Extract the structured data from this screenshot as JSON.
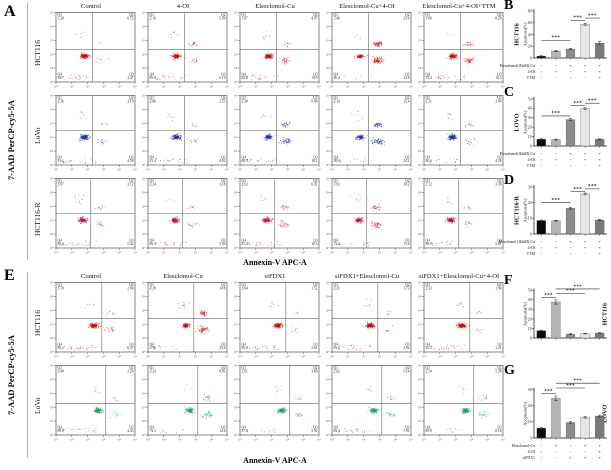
{
  "figure": {
    "panel_a": {
      "label": "A",
      "y_axis_label": "7-AAD PerCP-cy5-5A",
      "x_axis_label": "Annexin-V APC-A",
      "conditions": [
        "Control",
        "4-OI",
        "Elesclomol-Cu",
        "Elesclomol-Cu+4-OI",
        "Elesclomol-Cu+4-OI+TTM"
      ],
      "cell_lines": [
        {
          "name": "HCT116",
          "dot_color": "#c41414",
          "plots": [
            {
              "q1": 1.28,
              "q2": 0.55,
              "q3": 3.47,
              "q4": 94.7
            },
            {
              "q1": 2.16,
              "q2": 5.9,
              "q3": 6.1,
              "q4": 85.8
            },
            {
              "q1": 1.87,
              "q2": 4.47,
              "q3": 10.9,
              "q4": 82.8
            },
            {
              "q1": 1.46,
              "q2": 23.6,
              "q3": 34.6,
              "q4": 40.4
            },
            {
              "q1": 1.06,
              "q2": 8.28,
              "q3": 16.3,
              "q4": 74.4
            }
          ]
        },
        {
          "name": "LoVo",
          "dot_color": "#2633ab",
          "plots": [
            {
              "q1": 2.16,
              "q2": 2.19,
              "q3": 4.58,
              "q4": 91.1
            },
            {
              "q1": 2.06,
              "q2": 2.53,
              "q3": 4.02,
              "q4": 91.4
            },
            {
              "q1": 2.38,
              "q2": 9.94,
              "q3": 18.2,
              "q4": 69.5
            },
            {
              "q1": 2.14,
              "q2": 15.4,
              "q3": 24.1,
              "q4": 58.4
            },
            {
              "q1": 2.31,
              "q2": 2.84,
              "q3": 4.28,
              "q4": 90.6
            }
          ]
        },
        {
          "name": "HCT116-R",
          "dot_color": "#c0175c",
          "plots": [
            {
              "q1": 2.87,
              "q2": 3.12,
              "q3": 5.42,
              "q4": 88.6
            },
            {
              "q1": 2.24,
              "q2": 3.18,
              "q3": 5.33,
              "q4": 89.3
            },
            {
              "q1": 2.02,
              "q2": 6.31,
              "q3": 10.3,
              "q4": 81.4
            },
            {
              "q1": 1.93,
              "q2": 10.2,
              "q3": 15.4,
              "q4": 72.5
            },
            {
              "q1": 2.12,
              "q2": 3.38,
              "q3": 5.61,
              "q4": 88.9
            }
          ]
        }
      ]
    },
    "panel_e": {
      "label": "E",
      "y_axis_label": "7-AAD PerCP-cy5-5A",
      "x_axis_label": "Annexin-V APC-A",
      "conditions": [
        "Control",
        "Elesclomol-Cu",
        "siFDX1",
        "siFDX1+Elesclomol-Cu",
        "siFDX1+Elesclomol-Cu+4-OI"
      ],
      "cell_lines": [
        {
          "name": "HCT116",
          "dot_color": "#c41414",
          "plots": [
            {
              "q1": 1.7,
              "q2": 2.84,
              "q3": 6.37,
              "q4": 89.1
            },
            {
              "q1": 4.28,
              "q2": 14.8,
              "q3": 23.4,
              "q4": 57.5
            },
            {
              "q1": 2.04,
              "q2": 1.52,
              "q3": 2.61,
              "q4": 93.8
            },
            {
              "q1": 2.21,
              "q2": 1.73,
              "q3": 2.92,
              "q4": 93.1
            },
            {
              "q1": 2.33,
              "q2": 1.94,
              "q3": 3.21,
              "q4": 92.5
            }
          ]
        },
        {
          "name": "LoVo",
          "dot_color": "#2f9e63",
          "plots": [
            {
              "q1": 3.49,
              "q2": 2.24,
              "q3": 4.43,
              "q4": 89.8
            },
            {
              "q1": 1.23,
              "q2": 9.81,
              "q3": 14.6,
              "q4": 74.3
            },
            {
              "q1": 2.81,
              "q2": 3.66,
              "q3": 5.92,
              "q4": 87.6
            },
            {
              "q1": 2.62,
              "q2": 5.14,
              "q3": 7.81,
              "q4": 84.4
            },
            {
              "q1": 2.54,
              "q2": 5.38,
              "q3": 8.16,
              "q4": 83.9
            }
          ]
        }
      ]
    }
  },
  "chart_data": [
    {
      "type": "bar",
      "panel": "B",
      "cell_line": "HCT116",
      "ylabel": "Apoptosis(%)",
      "ylim": [
        0,
        80
      ],
      "yticks": [
        0,
        20,
        40,
        60,
        80
      ],
      "categories": [
        "Control",
        "4-OI",
        "Elesclomol-Cu",
        "Elesclomol-Cu+4-OI",
        "Elesclomol-Cu+4-OI+TTM"
      ],
      "values": [
        3.2,
        11.8,
        15.2,
        57.4,
        25.1
      ],
      "errors": [
        0.6,
        1.1,
        1.0,
        1.8,
        2.9
      ],
      "bar_colors": [
        "#0a0a0a",
        "#b4b4b4",
        "#8c8c8c",
        "#e6e6e6",
        "#7a7a7a"
      ],
      "significance": [
        {
          "from": 0,
          "to": 2,
          "label": "***",
          "height": 30
        },
        {
          "from": 2,
          "to": 3,
          "label": "***",
          "height": 64
        },
        {
          "from": 3,
          "to": 4,
          "label": "***",
          "height": 68
        }
      ],
      "condition_matrix": [
        {
          "label": "Elesclomol(20nM)-Cu",
          "signs": [
            "-",
            "-",
            "+",
            "+",
            "+"
          ]
        },
        {
          "label": "4-OI",
          "signs": [
            "-",
            "+",
            "-",
            "+",
            "+"
          ]
        },
        {
          "label": "TTM",
          "signs": [
            "-",
            "-",
            "-",
            "-",
            "+"
          ]
        }
      ]
    },
    {
      "type": "bar",
      "panel": "C",
      "cell_line": "LOVO",
      "ylabel": "Apoptosis(%)",
      "ylim": [
        0,
        50
      ],
      "yticks": [
        0,
        10,
        20,
        30,
        40,
        50
      ],
      "categories": [
        "Control",
        "4-OI",
        "Elesclomol-Cu",
        "Elesclomol-Cu+4-OI",
        "Elesclomol-Cu+4-OI+TTM"
      ],
      "values": [
        7.2,
        6.8,
        28.1,
        39.6,
        7.1
      ],
      "errors": [
        0.5,
        0.5,
        1.2,
        1.0,
        0.6
      ],
      "bar_colors": [
        "#0a0a0a",
        "#b4b4b4",
        "#8c8c8c",
        "#e6e6e6",
        "#7a7a7a"
      ],
      "significance": [
        {
          "from": 0,
          "to": 2,
          "label": "***",
          "height": 32
        },
        {
          "from": 2,
          "to": 3,
          "label": "***",
          "height": 43
        },
        {
          "from": 3,
          "to": 4,
          "label": "***",
          "height": 45.5
        }
      ],
      "condition_matrix": [
        {
          "label": "Elesclomol(40nM)-Cu",
          "signs": [
            "-",
            "-",
            "+",
            "+",
            "+"
          ]
        },
        {
          "label": "4-OI",
          "signs": [
            "-",
            "+",
            "-",
            "+",
            "+"
          ]
        },
        {
          "label": "TTM",
          "signs": [
            "-",
            "-",
            "-",
            "-",
            "+"
          ]
        }
      ]
    },
    {
      "type": "bar",
      "panel": "D",
      "cell_line": "HCT116-R",
      "ylabel": "Apoptosis(%)",
      "ylim": [
        0,
        30
      ],
      "yticks": [
        0,
        10,
        20,
        30
      ],
      "categories": [
        "Control",
        "4-OI",
        "Elesclomol-Cu",
        "Elesclomol-Cu+4-OI",
        "Elesclomol-Cu+4-OI+TTM"
      ],
      "values": [
        8.6,
        8.5,
        16.4,
        25.6,
        8.9
      ],
      "errors": [
        0.3,
        0.3,
        0.6,
        0.6,
        0.4
      ],
      "bar_colors": [
        "#0a0a0a",
        "#b4b4b4",
        "#8c8c8c",
        "#e6e6e6",
        "#7a7a7a"
      ],
      "significance": [
        {
          "from": 0,
          "to": 2,
          "label": "***",
          "height": 20
        },
        {
          "from": 2,
          "to": 3,
          "label": "***",
          "height": 27
        },
        {
          "from": 3,
          "to": 4,
          "label": "***",
          "height": 28.8
        }
      ],
      "condition_matrix": [
        {
          "label": "Elesclomol (40nM)-Cu",
          "signs": [
            "-",
            "-",
            "+",
            "+",
            "+"
          ]
        },
        {
          "label": "4-OI",
          "signs": [
            "-",
            "+",
            "-",
            "+",
            "+"
          ]
        },
        {
          "label": "TTM",
          "signs": [
            "-",
            "-",
            "-",
            "-",
            "+"
          ]
        }
      ]
    },
    {
      "type": "bar",
      "panel": "F",
      "cell_line": "HCT116",
      "ylabel": "Apoptosis(%)",
      "ylim": [
        0,
        50
      ],
      "yticks": [
        0,
        10,
        20,
        30,
        40,
        50
      ],
      "categories": [
        "Control",
        "Elesclomol-Cu",
        "siFDX1",
        "siFDX1+Elesclomol-Cu",
        "siFDX1+Elesclomol-Cu+4-OI"
      ],
      "values": [
        7.6,
        37.8,
        4.1,
        4.6,
        5.2
      ],
      "errors": [
        0.6,
        2.2,
        0.4,
        0.4,
        0.5
      ],
      "bar_colors": [
        "#0a0a0a",
        "#b4b4b4",
        "#8c8c8c",
        "#e6e6e6",
        "#7a7a7a"
      ],
      "significance": [
        {
          "from": 0,
          "to": 1,
          "label": "***",
          "height": 42.5
        },
        {
          "from": 1,
          "to": 3,
          "label": "***",
          "height": 47
        },
        {
          "from": 1,
          "to": 4,
          "label": "***",
          "height": 51.5
        }
      ],
      "condition_matrix": null
    },
    {
      "type": "bar",
      "panel": "G",
      "cell_line": "LOVO",
      "ylabel": "Apoptosis(%)",
      "ylim": [
        0,
        30
      ],
      "yticks": [
        0,
        10,
        20,
        30
      ],
      "categories": [
        "Control",
        "Elesclomol-Cu",
        "siFDX1",
        "siFDX1+Elesclomol-Cu",
        "siFDX1+Elesclomol-Cu+4-OI"
      ],
      "values": [
        6.1,
        24.6,
        9.6,
        12.9,
        13.6
      ],
      "errors": [
        0.6,
        1.4,
        0.7,
        0.6,
        0.6
      ],
      "bar_colors": [
        "#0a0a0a",
        "#b4b4b4",
        "#8c8c8c",
        "#e6e6e6",
        "#7a7a7a"
      ],
      "significance": [
        {
          "from": 0,
          "to": 1,
          "label": "***",
          "height": 27.5
        },
        {
          "from": 1,
          "to": 3,
          "label": "***",
          "height": 31
        },
        {
          "from": 1,
          "to": 4,
          "label": "***",
          "height": 34
        }
      ],
      "condition_matrix": [
        {
          "label": "Elesclomol-Cu",
          "signs": [
            "-",
            "+",
            "-",
            "+",
            "+"
          ]
        },
        {
          "label": "4-OI",
          "signs": [
            "-",
            "-",
            "-",
            "-",
            "+"
          ]
        },
        {
          "label": "siFDX1",
          "signs": [
            "-",
            "-",
            "+",
            "+",
            "+"
          ]
        }
      ]
    }
  ]
}
